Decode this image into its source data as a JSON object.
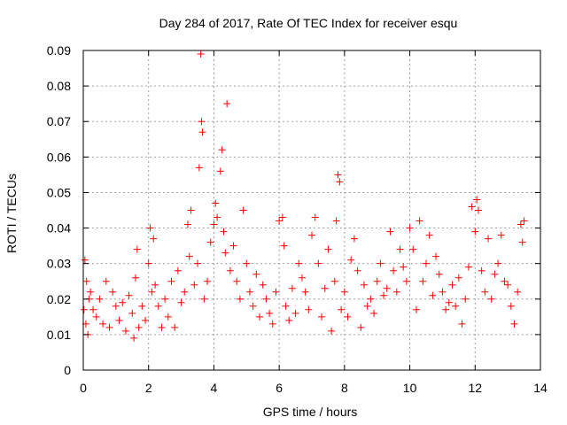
{
  "chart_data": {
    "type": "scatter",
    "title": "Day 284 of 2017, Rate Of TEC Index for receiver esqu",
    "xlabel": "GPS time / hours",
    "ylabel": "ROTI / TECUs",
    "xlim": [
      0,
      14
    ],
    "ylim": [
      0,
      0.09
    ],
    "xticks": [
      0,
      2,
      4,
      6,
      8,
      10,
      12,
      14
    ],
    "xtick_labels": [
      "0",
      "2",
      "4",
      "6",
      "8",
      "10",
      "12",
      "14"
    ],
    "yticks": [
      0,
      0.01,
      0.02,
      0.03,
      0.04,
      0.05,
      0.06,
      0.07,
      0.08,
      0.09
    ],
    "ytick_labels": [
      "0",
      "0.01",
      "0.02",
      "0.03",
      "0.04",
      "0.05",
      "0.06",
      "0.07",
      "0.08",
      "0.09"
    ],
    "grid": true,
    "marker": "+",
    "color": "#ff0000",
    "series": [
      {
        "name": "ROTI",
        "x": [
          0.02,
          0.05,
          0.08,
          0.1,
          0.14,
          0.18,
          0.22,
          0.3,
          0.4,
          0.5,
          0.6,
          0.7,
          0.8,
          0.9,
          1.0,
          1.1,
          1.2,
          1.3,
          1.4,
          1.5,
          1.55,
          1.6,
          1.65,
          1.7,
          1.8,
          1.9,
          2.0,
          2.05,
          2.1,
          2.15,
          2.2,
          2.3,
          2.4,
          2.5,
          2.6,
          2.7,
          2.8,
          2.9,
          3.0,
          3.1,
          3.2,
          3.25,
          3.3,
          3.4,
          3.5,
          3.55,
          3.6,
          3.62,
          3.65,
          3.7,
          3.8,
          3.9,
          4.0,
          4.05,
          4.1,
          4.2,
          4.25,
          4.3,
          4.35,
          4.4,
          4.5,
          4.6,
          4.7,
          4.8,
          4.9,
          5.0,
          5.1,
          5.2,
          5.3,
          5.4,
          5.5,
          5.6,
          5.7,
          5.8,
          5.9,
          6.0,
          6.1,
          6.15,
          6.2,
          6.3,
          6.4,
          6.5,
          6.6,
          6.7,
          6.8,
          6.9,
          7.0,
          7.1,
          7.2,
          7.3,
          7.4,
          7.5,
          7.6,
          7.7,
          7.75,
          7.8,
          7.85,
          7.9,
          8.0,
          8.1,
          8.2,
          8.3,
          8.4,
          8.5,
          8.6,
          8.7,
          8.8,
          8.9,
          9.0,
          9.1,
          9.2,
          9.3,
          9.4,
          9.5,
          9.6,
          9.7,
          9.8,
          9.9,
          10.0,
          10.1,
          10.2,
          10.3,
          10.4,
          10.5,
          10.6,
          10.7,
          10.8,
          10.9,
          11.0,
          11.1,
          11.2,
          11.3,
          11.4,
          11.5,
          11.6,
          11.7,
          11.8,
          11.9,
          12.0,
          12.05,
          12.1,
          12.2,
          12.3,
          12.4,
          12.5,
          12.6,
          12.7,
          12.8,
          12.9,
          13.0,
          13.1,
          13.2,
          13.3,
          13.4,
          13.45,
          13.5
        ],
        "y": [
          0.017,
          0.031,
          0.013,
          0.025,
          0.01,
          0.02,
          0.022,
          0.017,
          0.015,
          0.02,
          0.013,
          0.025,
          0.012,
          0.022,
          0.018,
          0.014,
          0.019,
          0.011,
          0.021,
          0.016,
          0.009,
          0.026,
          0.034,
          0.012,
          0.018,
          0.014,
          0.03,
          0.04,
          0.022,
          0.037,
          0.024,
          0.018,
          0.012,
          0.02,
          0.015,
          0.025,
          0.012,
          0.028,
          0.019,
          0.022,
          0.041,
          0.032,
          0.045,
          0.024,
          0.03,
          0.057,
          0.089,
          0.07,
          0.067,
          0.02,
          0.025,
          0.036,
          0.041,
          0.047,
          0.043,
          0.056,
          0.062,
          0.039,
          0.033,
          0.075,
          0.028,
          0.035,
          0.025,
          0.02,
          0.045,
          0.03,
          0.022,
          0.018,
          0.027,
          0.015,
          0.024,
          0.02,
          0.016,
          0.013,
          0.022,
          0.042,
          0.043,
          0.035,
          0.018,
          0.014,
          0.023,
          0.016,
          0.03,
          0.026,
          0.022,
          0.017,
          0.038,
          0.043,
          0.03,
          0.015,
          0.023,
          0.034,
          0.011,
          0.025,
          0.042,
          0.055,
          0.053,
          0.017,
          0.022,
          0.015,
          0.031,
          0.037,
          0.028,
          0.012,
          0.024,
          0.018,
          0.02,
          0.016,
          0.025,
          0.03,
          0.021,
          0.023,
          0.039,
          0.028,
          0.022,
          0.034,
          0.029,
          0.025,
          0.04,
          0.034,
          0.017,
          0.042,
          0.025,
          0.03,
          0.038,
          0.021,
          0.032,
          0.027,
          0.022,
          0.017,
          0.019,
          0.024,
          0.018,
          0.026,
          0.013,
          0.02,
          0.029,
          0.046,
          0.039,
          0.048,
          0.045,
          0.028,
          0.022,
          0.037,
          0.02,
          0.027,
          0.03,
          0.038,
          0.025,
          0.024,
          0.018,
          0.013,
          0.022,
          0.041,
          0.036,
          0.042
        ]
      }
    ]
  }
}
